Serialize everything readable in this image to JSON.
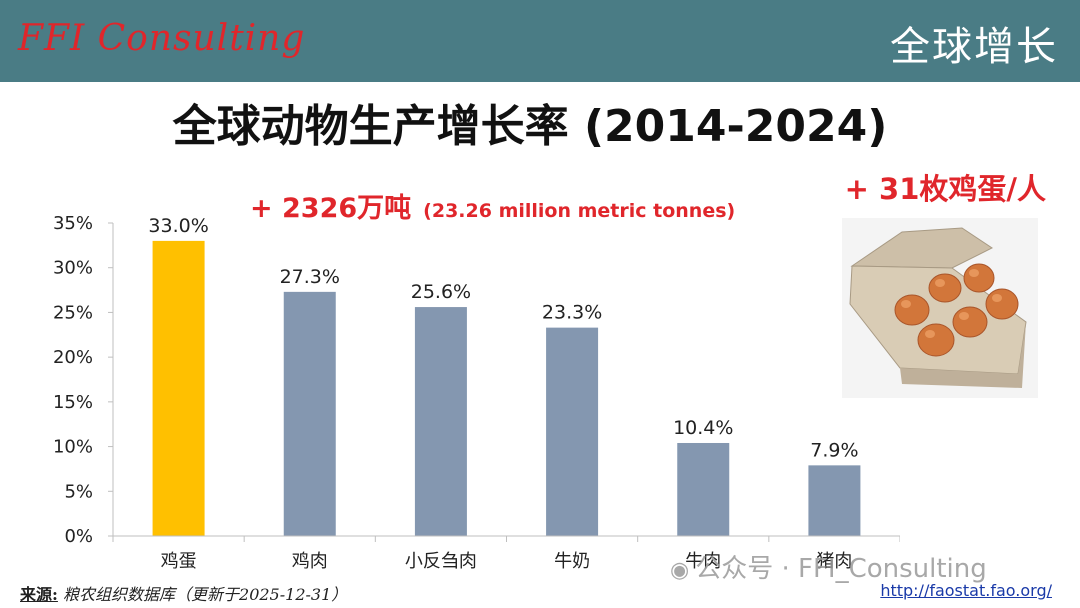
{
  "header": {
    "logo_text": "FFI Consulting",
    "section_title": "全球增长",
    "color": "#4a7c85"
  },
  "main": {
    "title": "全球动物生产增长率 (2014-2024)",
    "tonnes_big": "+ 2326万吨",
    "tonnes_small": "(23.26 million metric tonnes)",
    "eggs_note": "+ 31枚鸡蛋/人"
  },
  "chart_data": {
    "type": "bar",
    "categories": [
      "鸡蛋",
      "鸡肉",
      "小反刍肉",
      "牛奶",
      "牛肉",
      "猪肉"
    ],
    "values": [
      33.0,
      27.3,
      25.6,
      23.3,
      10.4,
      7.9
    ],
    "data_labels": [
      "33.0%",
      "27.3%",
      "25.6%",
      "23.3%",
      "10.4%",
      "7.9%"
    ],
    "ylim": [
      0,
      35
    ],
    "yticks": [
      "0%",
      "5%",
      "10%",
      "15%",
      "20%",
      "25%",
      "30%",
      "35%"
    ],
    "title": "",
    "xlabel": "",
    "ylabel": "",
    "grid": false,
    "colors": {
      "highlight": "#ffc000",
      "default": "#8497b0"
    },
    "highlight_index": 0
  },
  "footer": {
    "source_label": "来源:",
    "source_text": "粮农组织数据库（更新于2025-12-31）",
    "link": "http://faostat.fao.org/",
    "watermark": "公众号 · FFI_Consulting",
    "watermark_icon": "wechat-icon"
  }
}
